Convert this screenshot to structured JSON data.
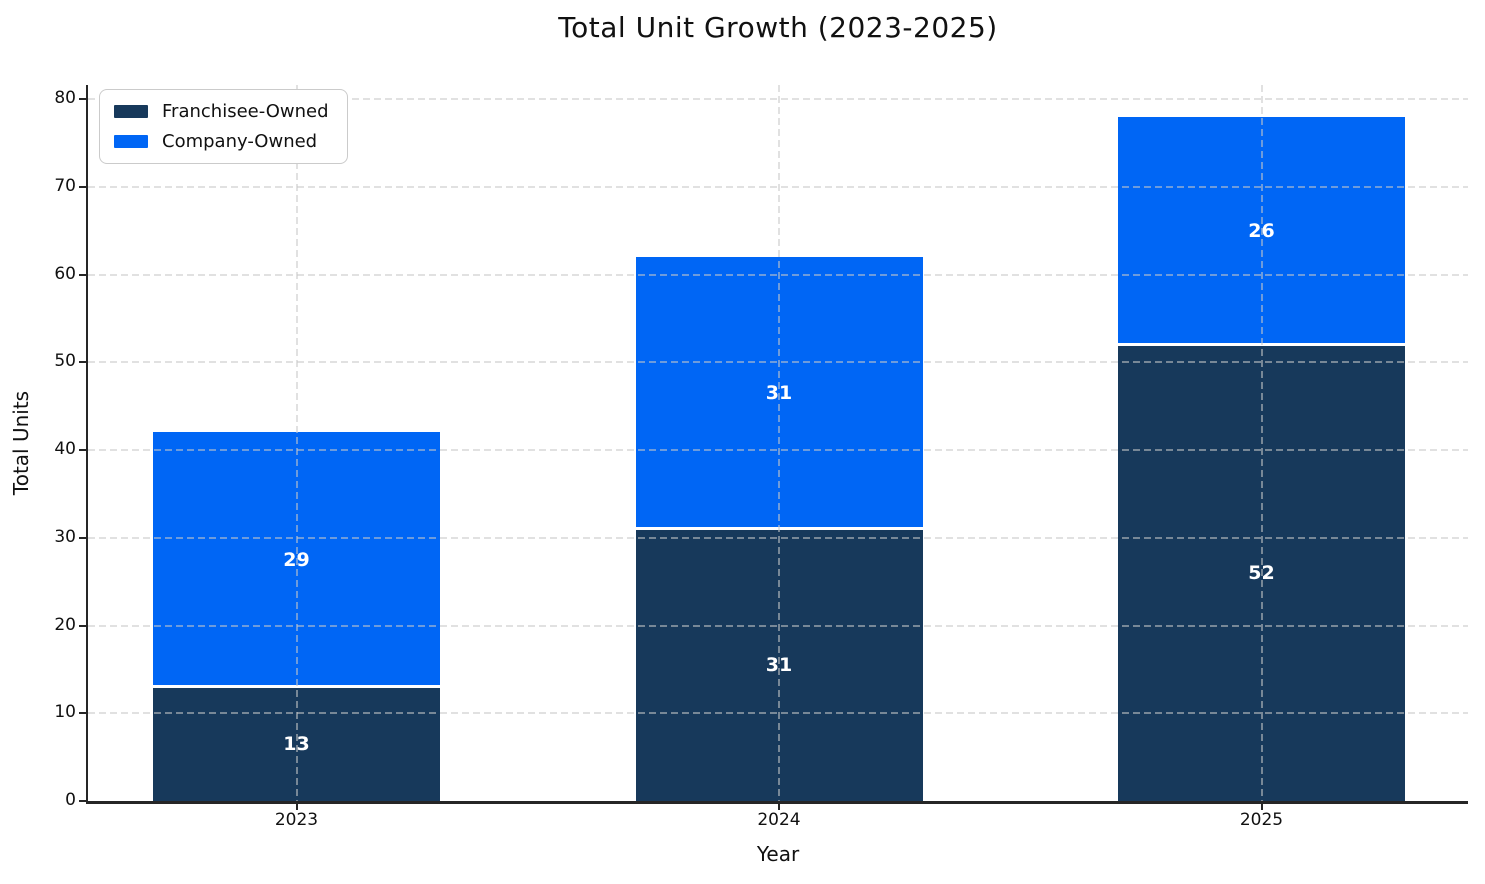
{
  "chart_data": {
    "type": "bar",
    "stacked": true,
    "title": "Total Unit Growth (2023-2025)",
    "xlabel": "Year",
    "ylabel": "Total Units",
    "categories": [
      "2023",
      "2024",
      "2025"
    ],
    "series": [
      {
        "name": "Franchisee-Owned",
        "color": "#17395b",
        "values": [
          13,
          31,
          52
        ]
      },
      {
        "name": "Company-Owned",
        "color": "#0066f5",
        "values": [
          29,
          31,
          26
        ]
      }
    ],
    "bar_labels": [
      [
        "13",
        "31",
        "52"
      ],
      [
        "29",
        "31",
        "26"
      ]
    ],
    "bar_label_color": "#ffffff",
    "ylim": [
      0,
      80
    ],
    "yticks": [
      "0",
      "10",
      "20",
      "30",
      "40",
      "50",
      "60",
      "70",
      "80"
    ],
    "grid": "dashed-both-axes-above-bars",
    "grid_color": "#dcdcdc",
    "axis_color": "#262626",
    "segment_separator_color": "#ffffff",
    "legend_position": "upper left"
  }
}
